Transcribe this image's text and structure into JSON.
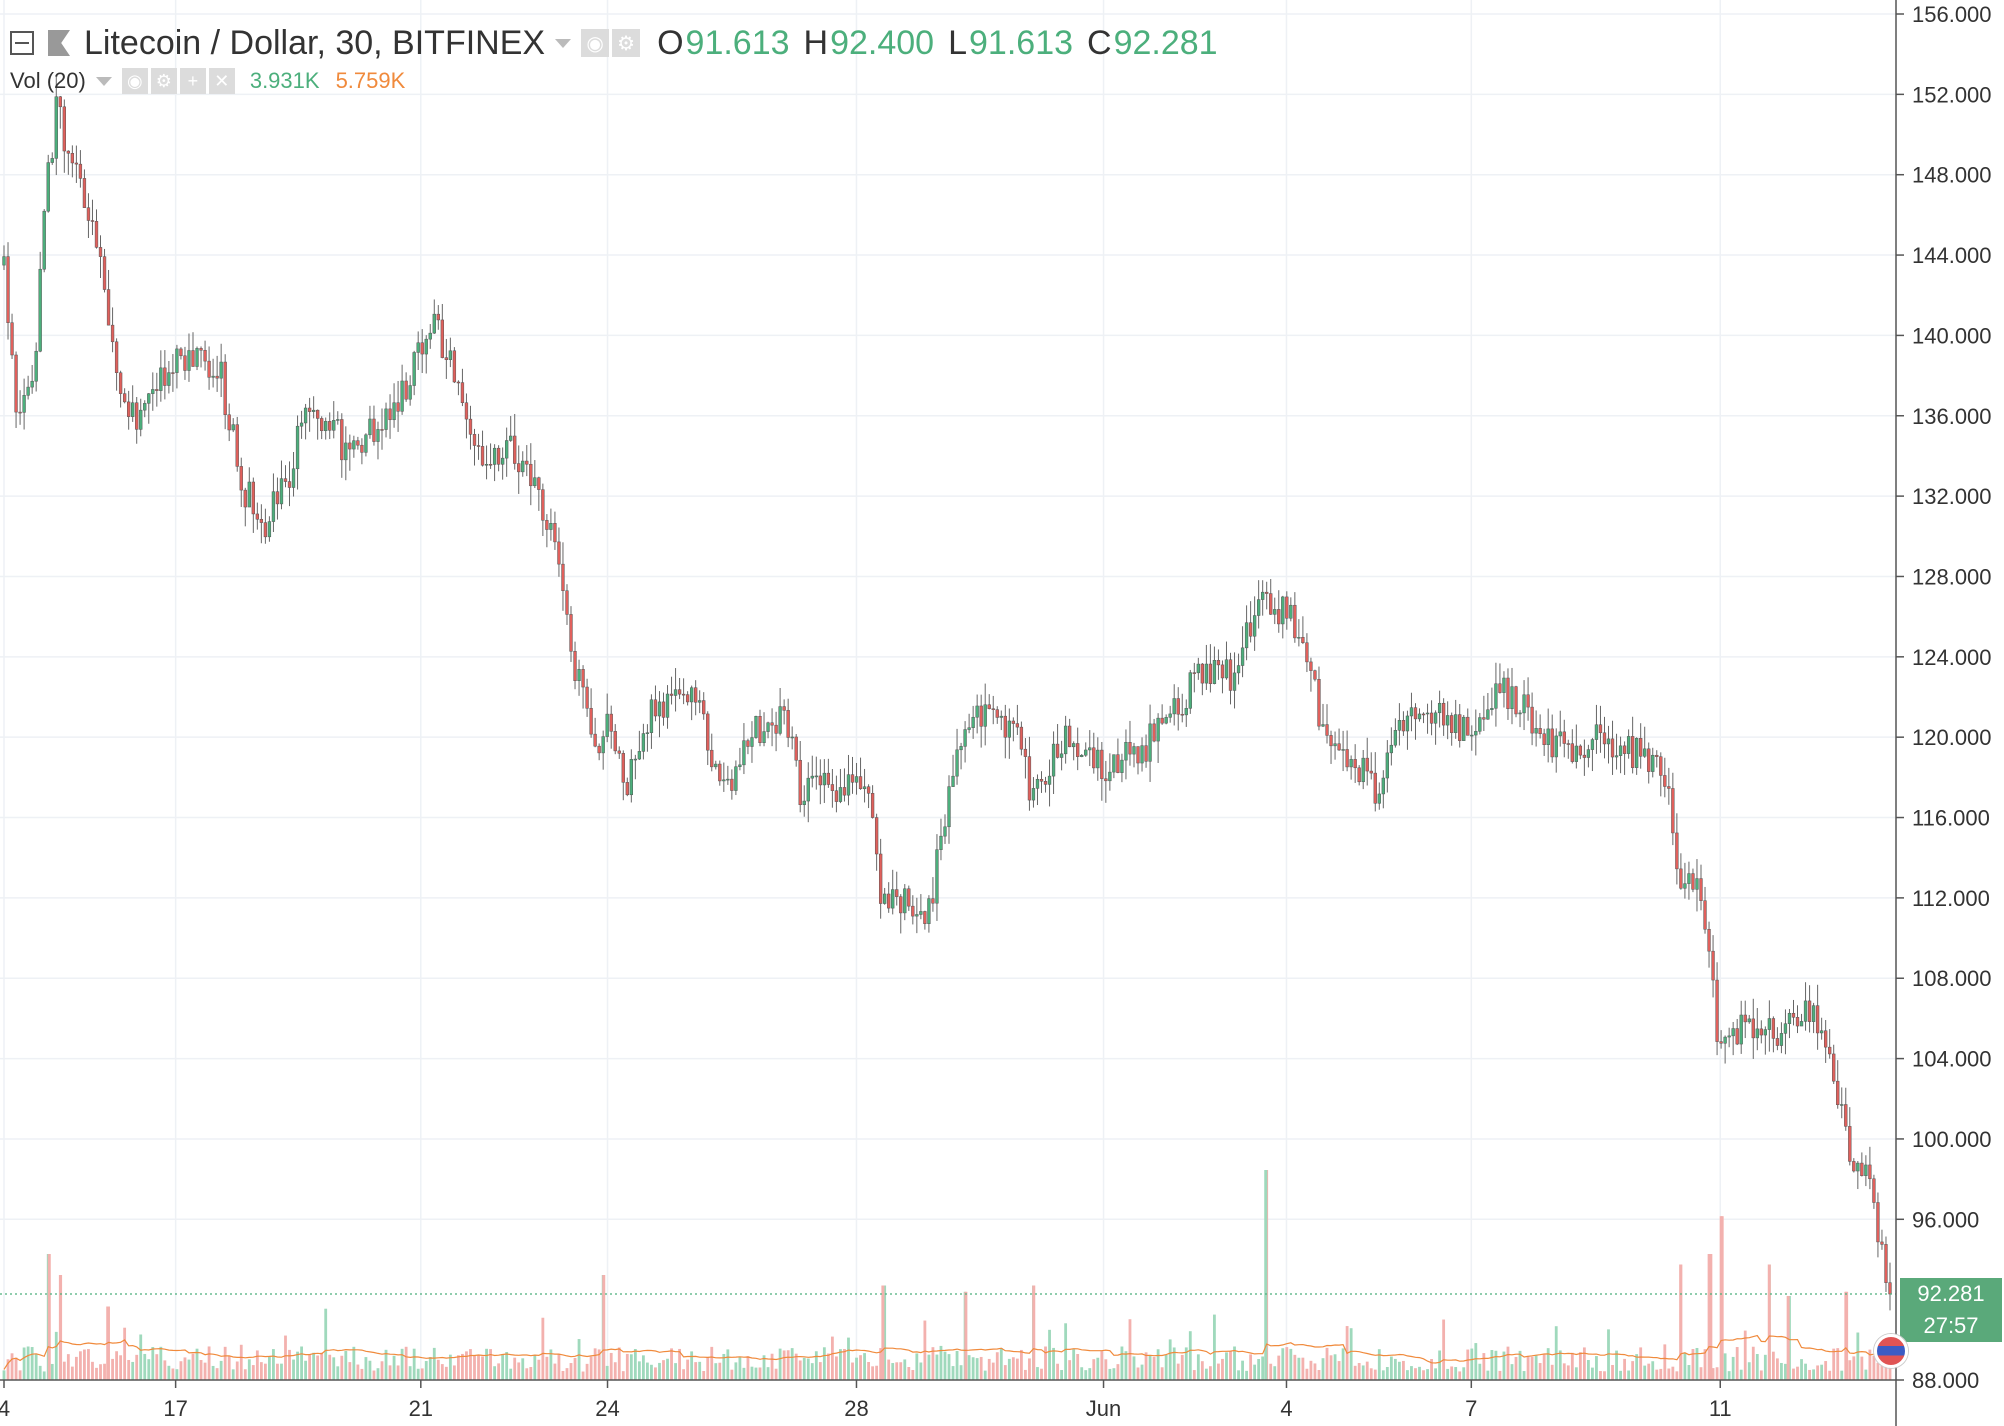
{
  "header": {
    "symbol": "Litecoin / Dollar, 30, BITFINEX",
    "ohlc": [
      {
        "label": "O",
        "value": "91.613"
      },
      {
        "label": "H",
        "value": "92.400"
      },
      {
        "label": "L",
        "value": "91.613"
      },
      {
        "label": "C",
        "value": "92.281"
      }
    ]
  },
  "volume_legend": {
    "label": "Vol (20)",
    "value_1": "3.931K",
    "value_2": "5.759K"
  },
  "price_tags": {
    "last_price": "92.281",
    "countdown": "27:57"
  },
  "colors": {
    "up": "#4caf7c",
    "down": "#e0605c",
    "volume_up": "#9fd9bc",
    "volume_down": "#f3b1ae",
    "volume_ma": "#f08a3c",
    "grid": "#eef1f5",
    "axis_text": "#333333"
  },
  "chart_data": {
    "type": "candlestick",
    "title": "Litecoin / Dollar, 30, BITFINEX",
    "interval": "30",
    "y_axis": {
      "side": "right",
      "range": [
        88,
        156
      ],
      "ticks": [
        "156.000",
        "152.000",
        "148.000",
        "144.000",
        "140.000",
        "136.000",
        "132.000",
        "128.000",
        "124.000",
        "120.000",
        "116.000",
        "112.000",
        "108.000",
        "104.000",
        "100.000",
        "96.000",
        "88.000"
      ]
    },
    "x_axis": {
      "ticks": [
        {
          "label": "4",
          "t": 0
        },
        {
          "label": "17",
          "t": 0.091
        },
        {
          "label": "21",
          "t": 0.221
        },
        {
          "label": "24",
          "t": 0.32
        },
        {
          "label": "28",
          "t": 0.452
        },
        {
          "label": "Jun",
          "t": 0.583
        },
        {
          "label": "4",
          "t": 0.68
        },
        {
          "label": "7",
          "t": 0.778
        },
        {
          "label": "11",
          "t": 0.91
        }
      ]
    },
    "grid": true,
    "price_path": [
      [
        0.0,
        143.5
      ],
      [
        0.006,
        136.0
      ],
      [
        0.016,
        137.5
      ],
      [
        0.02,
        145.0
      ],
      [
        0.028,
        151.5
      ],
      [
        0.037,
        148.0
      ],
      [
        0.05,
        144.5
      ],
      [
        0.056,
        139.5
      ],
      [
        0.07,
        135.5
      ],
      [
        0.085,
        138.0
      ],
      [
        0.1,
        139.0
      ],
      [
        0.115,
        138.0
      ],
      [
        0.125,
        133.0
      ],
      [
        0.136,
        130.5
      ],
      [
        0.15,
        132.5
      ],
      [
        0.162,
        137.0
      ],
      [
        0.18,
        134.5
      ],
      [
        0.2,
        135.5
      ],
      [
        0.215,
        138.0
      ],
      [
        0.228,
        140.5
      ],
      [
        0.24,
        138.0
      ],
      [
        0.245,
        135.0
      ],
      [
        0.26,
        134.0
      ],
      [
        0.27,
        134.5
      ],
      [
        0.29,
        130.5
      ],
      [
        0.3,
        124.5
      ],
      [
        0.315,
        119.5
      ],
      [
        0.322,
        121.0
      ],
      [
        0.33,
        117.5
      ],
      [
        0.345,
        121.5
      ],
      [
        0.368,
        122.0
      ],
      [
        0.375,
        118.0
      ],
      [
        0.385,
        118.0
      ],
      [
        0.4,
        120.5
      ],
      [
        0.415,
        121.0
      ],
      [
        0.422,
        117.5
      ],
      [
        0.44,
        117.5
      ],
      [
        0.458,
        118.0
      ],
      [
        0.465,
        112.0
      ],
      [
        0.48,
        111.5
      ],
      [
        0.49,
        111.0
      ],
      [
        0.505,
        120.0
      ],
      [
        0.52,
        121.0
      ],
      [
        0.538,
        120.0
      ],
      [
        0.545,
        116.5
      ],
      [
        0.56,
        120.0
      ],
      [
        0.58,
        118.5
      ],
      [
        0.6,
        119.0
      ],
      [
        0.62,
        121.0
      ],
      [
        0.635,
        123.5
      ],
      [
        0.65,
        123.0
      ],
      [
        0.668,
        127.0
      ],
      [
        0.685,
        125.5
      ],
      [
        0.7,
        120.5
      ],
      [
        0.715,
        119.0
      ],
      [
        0.728,
        117.5
      ],
      [
        0.745,
        121.5
      ],
      [
        0.768,
        121.0
      ],
      [
        0.778,
        119.5
      ],
      [
        0.79,
        122.5
      ],
      [
        0.81,
        121.0
      ],
      [
        0.825,
        119.5
      ],
      [
        0.845,
        120.0
      ],
      [
        0.86,
        119.5
      ],
      [
        0.88,
        118.5
      ],
      [
        0.888,
        113.0
      ],
      [
        0.9,
        112.5
      ],
      [
        0.91,
        104.0
      ],
      [
        0.922,
        106.0
      ],
      [
        0.94,
        105.5
      ],
      [
        0.958,
        106.5
      ],
      [
        0.97,
        103.0
      ],
      [
        0.978,
        99.5
      ],
      [
        0.99,
        98.5
      ],
      [
        0.995,
        94.5
      ],
      [
        1.0,
        92.3
      ]
    ],
    "last_close": 92.281,
    "volume_spikes": [
      {
        "t": 0.024,
        "v": 0.6
      },
      {
        "t": 0.03,
        "v": 0.5
      },
      {
        "t": 0.055,
        "v": 0.35
      },
      {
        "t": 0.318,
        "v": 0.5
      },
      {
        "t": 0.466,
        "v": 0.45
      },
      {
        "t": 0.51,
        "v": 0.42
      },
      {
        "t": 0.546,
        "v": 0.45
      },
      {
        "t": 0.669,
        "v": 1.0
      },
      {
        "t": 0.889,
        "v": 0.55
      },
      {
        "t": 0.905,
        "v": 0.6
      },
      {
        "t": 0.911,
        "v": 0.78
      },
      {
        "t": 0.936,
        "v": 0.55
      },
      {
        "t": 0.946,
        "v": 0.4
      },
      {
        "t": 0.977,
        "v": 0.42
      }
    ]
  }
}
